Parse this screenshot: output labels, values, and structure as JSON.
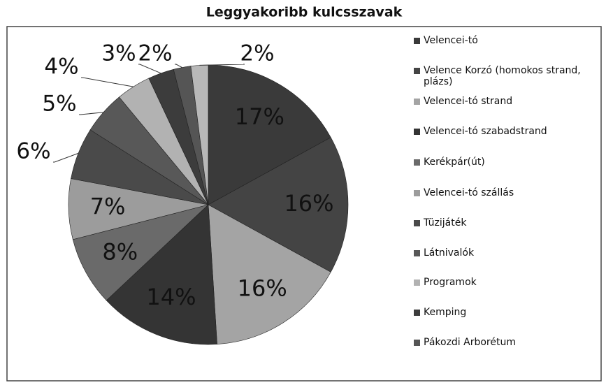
{
  "chart_data": {
    "type": "pie",
    "title": "Leggyakoribb kulcsszavak",
    "categories": [
      "Velencei-tó",
      "Velence Korzó (homokos strand, plázs)",
      "Velencei-tó strand",
      "Velencei-tó szabadstrand",
      "Kerékpár(út)",
      "Velencei-tó szállás",
      "Tüzijáték",
      "Látnivalók",
      "Programok",
      "Kemping",
      "Pákozdi Arborétum",
      null
    ],
    "values": [
      17,
      16,
      16,
      14,
      8,
      7,
      6,
      5,
      4,
      3,
      2,
      2
    ],
    "value_labels": [
      "17%",
      "16%",
      "16%",
      "14%",
      "8%",
      "7%",
      "6%",
      "5%",
      "4%",
      "3%",
      "2%",
      "2%"
    ],
    "colors": [
      "#3a3a3a",
      "#444444",
      "#a4a4a4",
      "#343434",
      "#6a6a6a",
      "#9c9c9c",
      "#4a4a4a",
      "#585858",
      "#b2b2b2",
      "#3c3c3c",
      "#555555",
      "#b8b8b8"
    ]
  }
}
